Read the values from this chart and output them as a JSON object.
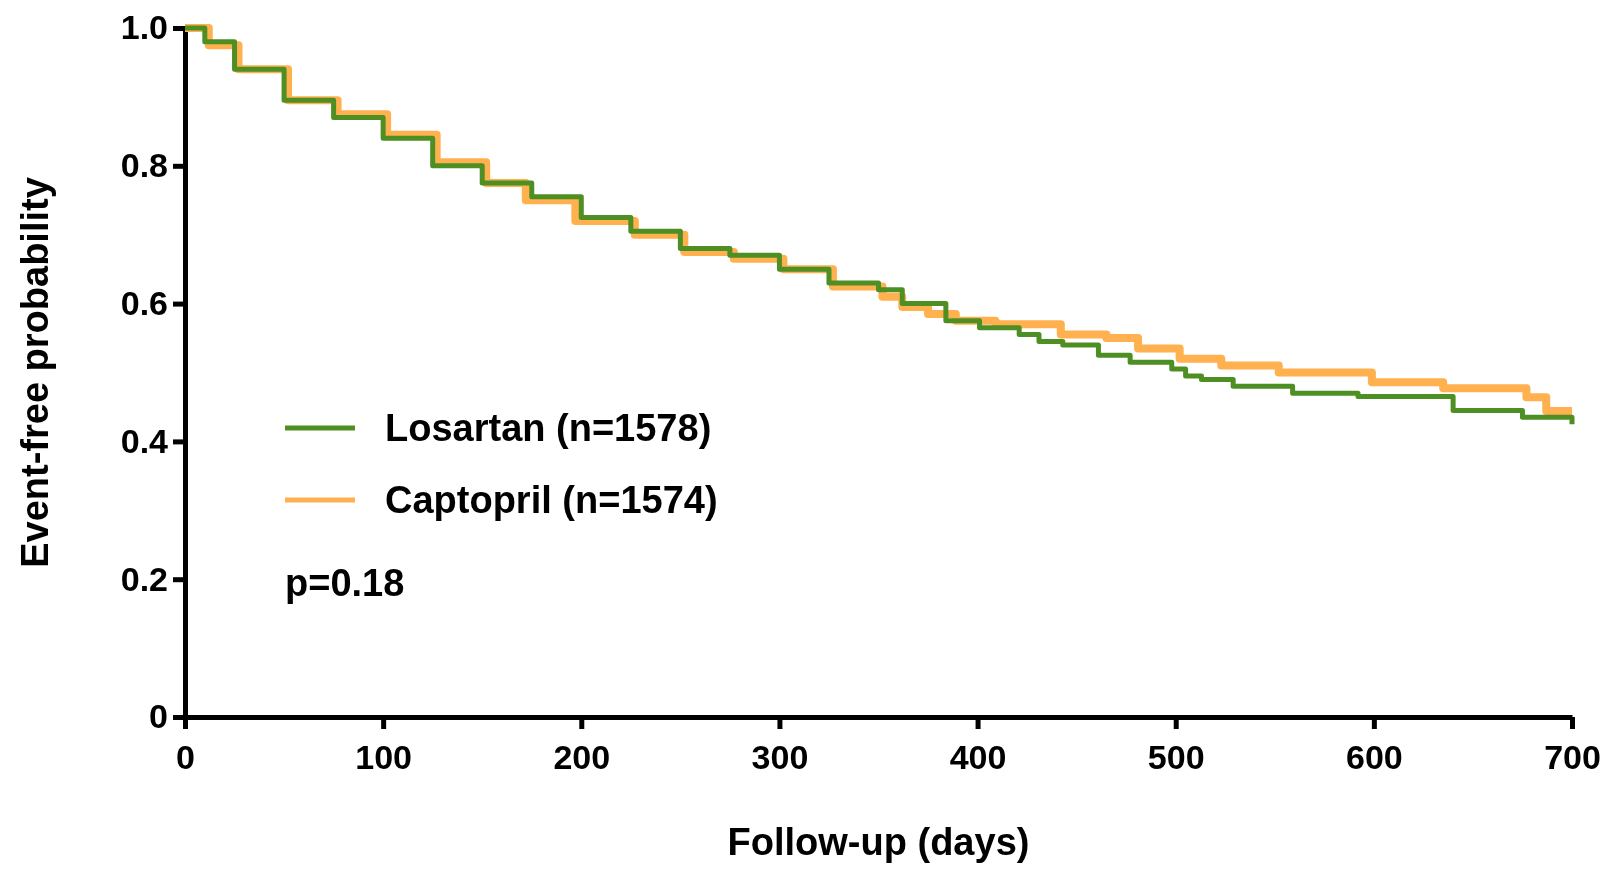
{
  "chart_data": {
    "type": "step",
    "xlabel": "Follow-up (days)",
    "ylabel": "Event-free probability",
    "xlim": [
      0,
      700
    ],
    "ylim": [
      0,
      1
    ],
    "xticks": [
      0,
      100,
      200,
      300,
      400,
      500,
      600,
      700
    ],
    "yticks": [
      {
        "value": 0,
        "label": "0"
      },
      0.2,
      0.4,
      0.6,
      0.8,
      {
        "value": 1,
        "label": "1.0"
      }
    ],
    "legend": "left",
    "grid": false,
    "line_style": "solid",
    "marker": "none",
    "annotations": [
      "p=0.18"
    ],
    "series": [
      {
        "name": "Losartan (n=1578)",
        "color": "#4e8f23",
        "x": [
          0,
          10,
          25,
          50,
          75,
          100,
          125,
          150,
          175,
          200,
          225,
          250,
          275,
          300,
          325,
          350,
          362,
          384,
          401,
          421,
          431,
          443,
          461,
          477,
          498,
          505,
          513,
          529,
          559,
          592,
          640,
          675,
          698,
          700
        ],
        "values": [
          1,
          0.98,
          0.94,
          0.895,
          0.87,
          0.84,
          0.8,
          0.775,
          0.755,
          0.725,
          0.705,
          0.68,
          0.67,
          0.65,
          0.63,
          0.62,
          0.6,
          0.575,
          0.565,
          0.555,
          0.545,
          0.54,
          0.525,
          0.515,
          0.505,
          0.495,
          0.49,
          0.48,
          0.47,
          0.465,
          0.445,
          0.435,
          0.435,
          0.425
        ]
      },
      {
        "name": "Captopril (n=1574)",
        "color": "#ffb04f",
        "x": [
          0,
          12,
          27,
          52,
          77,
          102,
          127,
          152,
          172,
          197,
          227,
          252,
          277,
          302,
          327,
          352,
          362,
          375,
          389,
          409,
          442,
          465,
          481,
          502,
          523,
          552,
          599,
          635,
          677,
          687,
          700
        ],
        "values": [
          1,
          0.975,
          0.94,
          0.895,
          0.875,
          0.845,
          0.805,
          0.775,
          0.75,
          0.72,
          0.7,
          0.675,
          0.665,
          0.65,
          0.625,
          0.61,
          0.595,
          0.585,
          0.575,
          0.57,
          0.555,
          0.55,
          0.535,
          0.52,
          0.51,
          0.5,
          0.486,
          0.477,
          0.464,
          0.444,
          0.444
        ]
      }
    ]
  }
}
